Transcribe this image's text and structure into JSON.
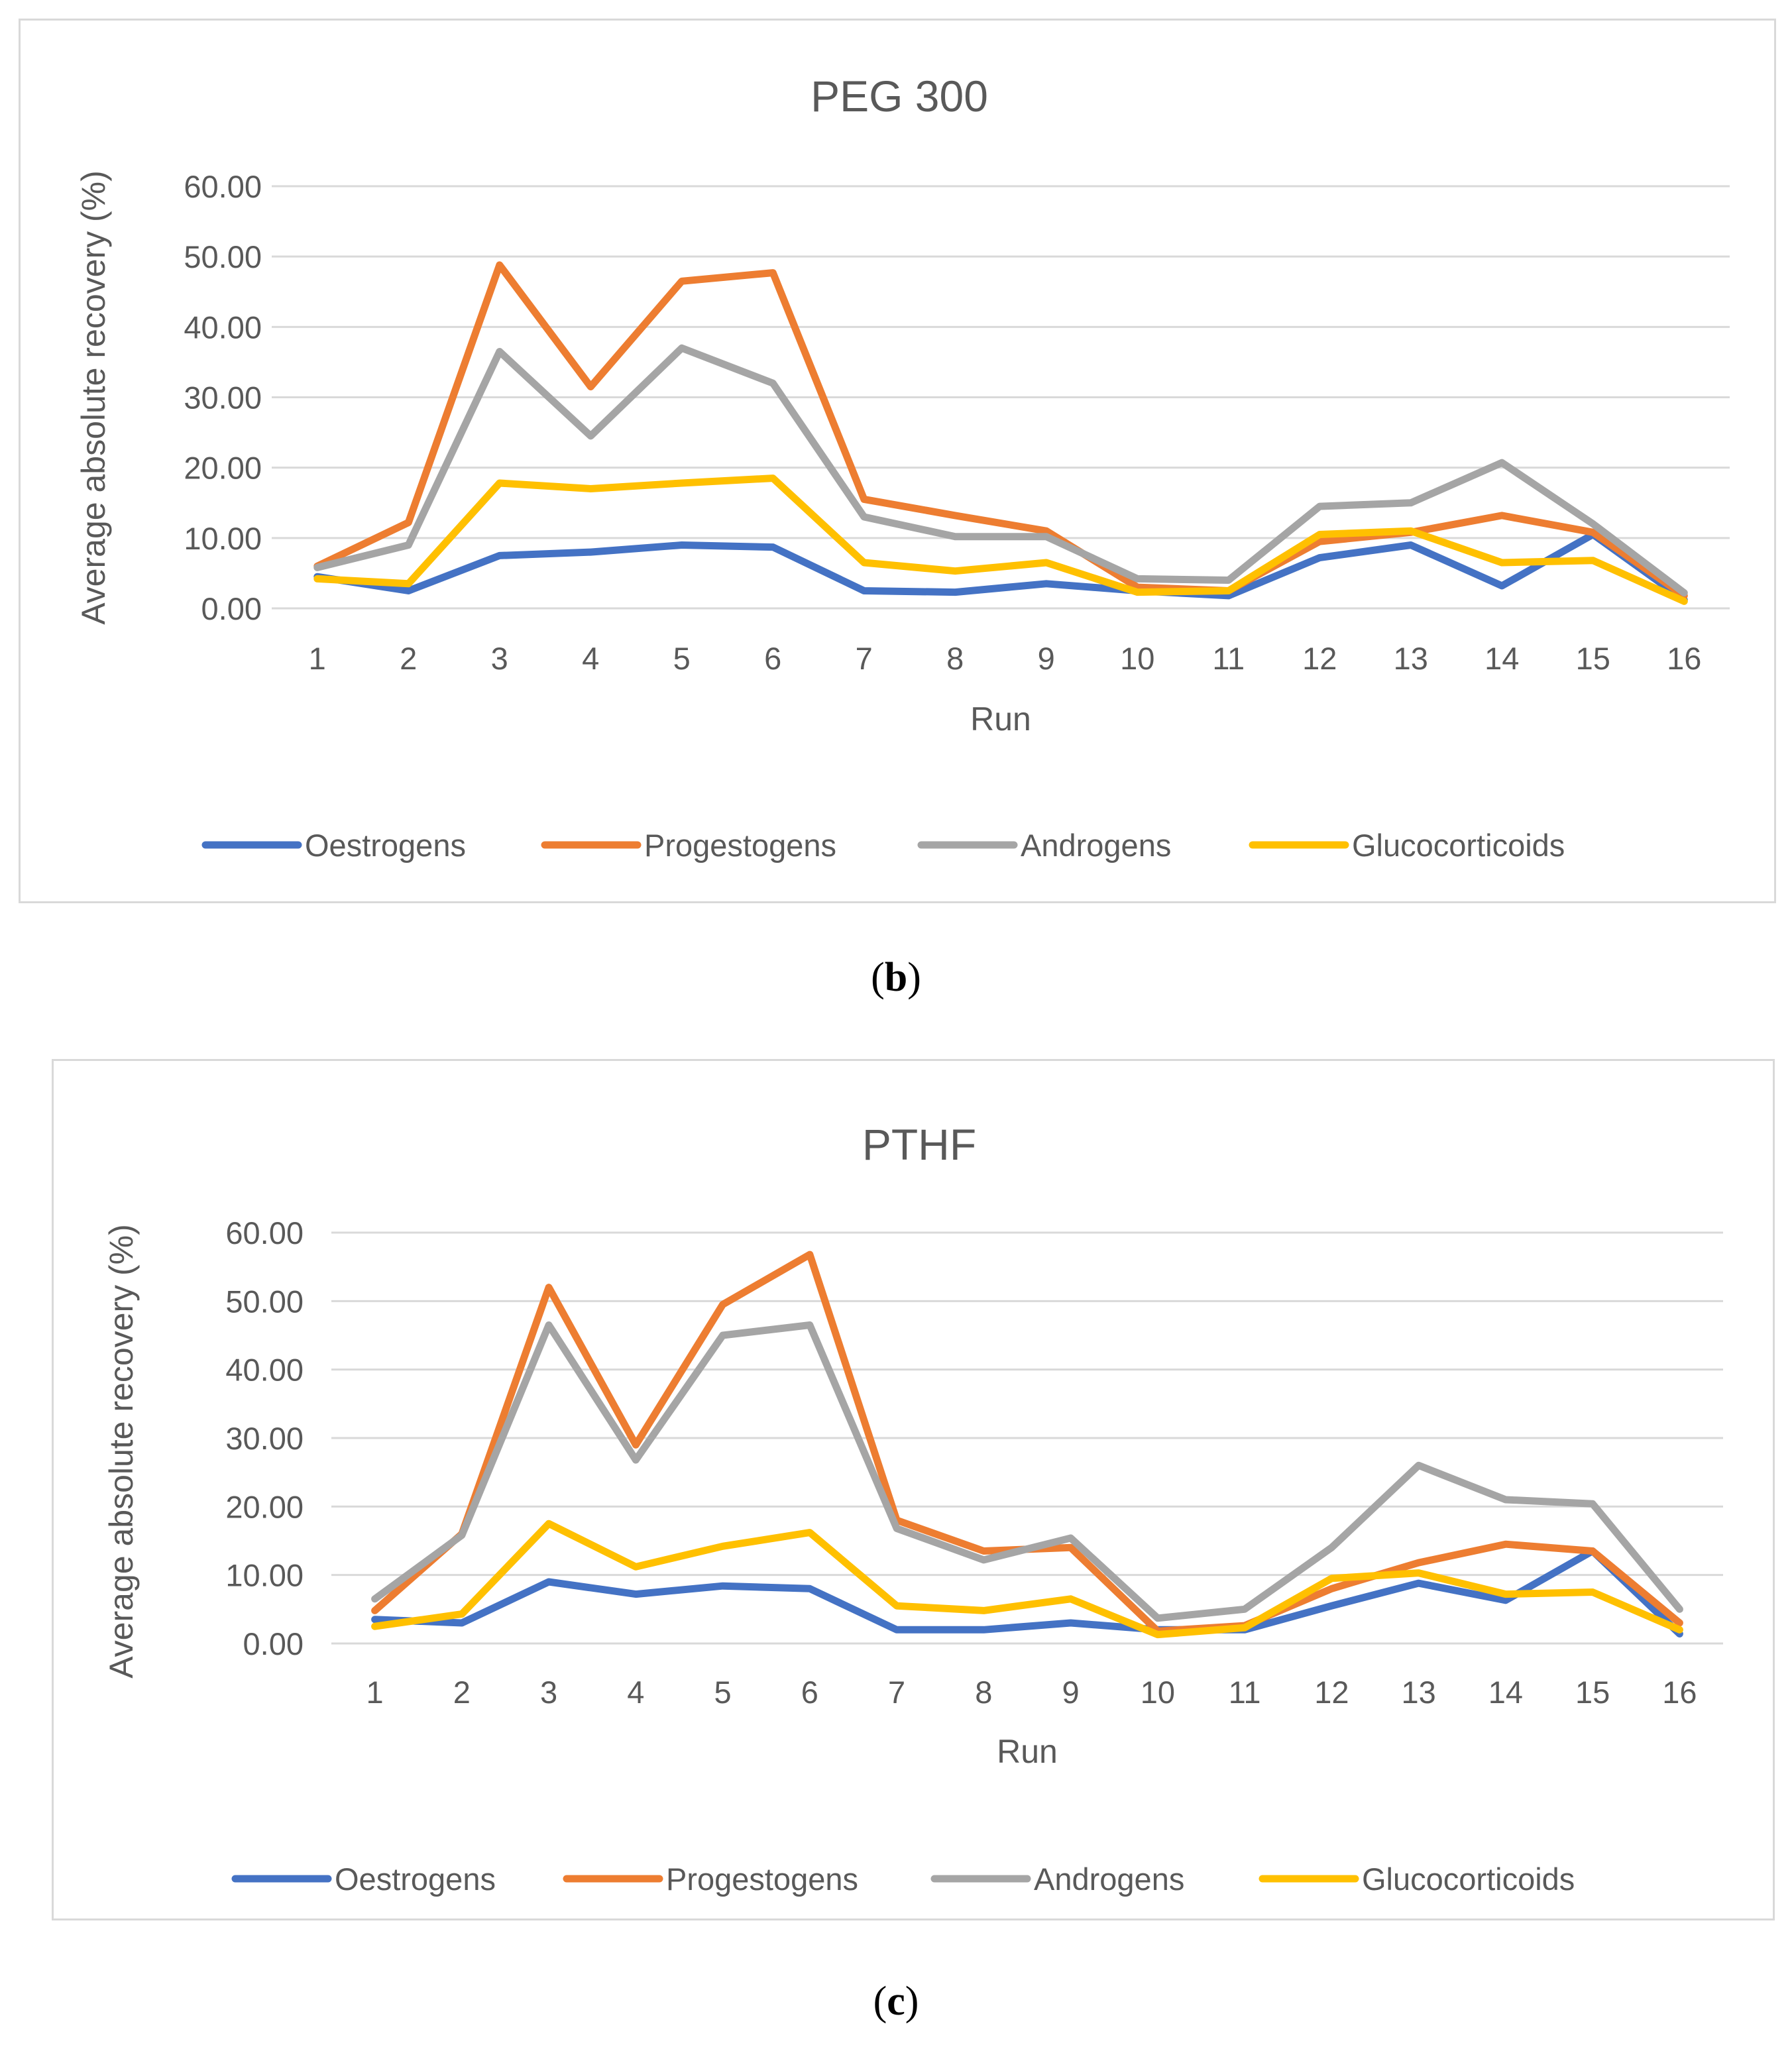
{
  "panels": [
    {
      "caption_letter": "b",
      "chart_data": {
        "type": "line",
        "title": "PEG 300",
        "xlabel": "Run",
        "ylabel": "Average absolute recovery (%)",
        "ylim": [
          0,
          60
        ],
        "yticks": [
          "0.00",
          "10.00",
          "20.00",
          "30.00",
          "40.00",
          "50.00",
          "60.00"
        ],
        "categories": [
          "1",
          "2",
          "3",
          "4",
          "5",
          "6",
          "7",
          "8",
          "9",
          "10",
          "11",
          "12",
          "13",
          "14",
          "15",
          "16"
        ],
        "legend_position": "bottom",
        "series": [
          {
            "name": "Oestrogens",
            "color": "#4472c4",
            "values": [
              4.5,
              2.5,
              7.5,
              8.0,
              9.0,
              8.7,
              2.5,
              2.3,
              3.5,
              2.5,
              1.8,
              7.2,
              9.0,
              3.2,
              10.5,
              1.2
            ]
          },
          {
            "name": "Progestogens",
            "color": "#ed7d31",
            "values": [
              6.0,
              12.2,
              48.8,
              31.5,
              46.5,
              47.7,
              15.5,
              13.2,
              11.0,
              3.0,
              2.5,
              9.5,
              10.8,
              13.2,
              10.8,
              1.8
            ]
          },
          {
            "name": "Androgens",
            "color": "#a5a5a5",
            "values": [
              5.8,
              9.0,
              36.5,
              24.5,
              37.0,
              32.0,
              13.0,
              10.2,
              10.2,
              4.2,
              4.0,
              14.5,
              15.0,
              20.7,
              12.0,
              2.2
            ]
          },
          {
            "name": "Glucocorticoids",
            "color": "#ffc000",
            "values": [
              4.2,
              3.5,
              17.8,
              17.0,
              17.8,
              18.5,
              6.5,
              5.3,
              6.5,
              2.3,
              2.5,
              10.5,
              11.0,
              6.5,
              6.8,
              1.0
            ]
          }
        ]
      }
    },
    {
      "caption_letter": "c",
      "chart_data": {
        "type": "line",
        "title": "PTHF",
        "xlabel": "Run",
        "ylabel": "Average absolute recovery (%)",
        "ylim": [
          0,
          60
        ],
        "yticks": [
          "0.00",
          "10.00",
          "20.00",
          "30.00",
          "40.00",
          "50.00",
          "60.00"
        ],
        "categories": [
          "1",
          "2",
          "3",
          "4",
          "5",
          "6",
          "7",
          "8",
          "9",
          "10",
          "11",
          "12",
          "13",
          "14",
          "15",
          "16"
        ],
        "legend_position": "bottom",
        "series": [
          {
            "name": "Oestrogens",
            "color": "#4472c4",
            "values": [
              3.5,
              3.0,
              9.0,
              7.2,
              8.4,
              8.0,
              2.0,
              2.0,
              3.0,
              2.0,
              2.0,
              5.5,
              8.8,
              6.3,
              13.5,
              1.4
            ]
          },
          {
            "name": "Progestogens",
            "color": "#ed7d31",
            "values": [
              4.8,
              16.0,
              52.0,
              29.0,
              49.5,
              56.8,
              18.0,
              13.5,
              14.0,
              1.8,
              2.6,
              8.0,
              11.8,
              14.5,
              13.5,
              3.0
            ]
          },
          {
            "name": "Androgens",
            "color": "#a5a5a5",
            "values": [
              6.5,
              15.8,
              46.5,
              26.8,
              45.0,
              46.5,
              16.8,
              12.2,
              15.4,
              3.7,
              5.0,
              14.0,
              26.0,
              21.0,
              20.4,
              5.0
            ]
          },
          {
            "name": "Glucocorticoids",
            "color": "#ffc000",
            "values": [
              2.5,
              4.3,
              17.5,
              11.2,
              14.2,
              16.2,
              5.5,
              4.8,
              6.5,
              1.3,
              2.3,
              9.5,
              10.3,
              7.2,
              7.5,
              2.0
            ]
          }
        ]
      }
    }
  ]
}
